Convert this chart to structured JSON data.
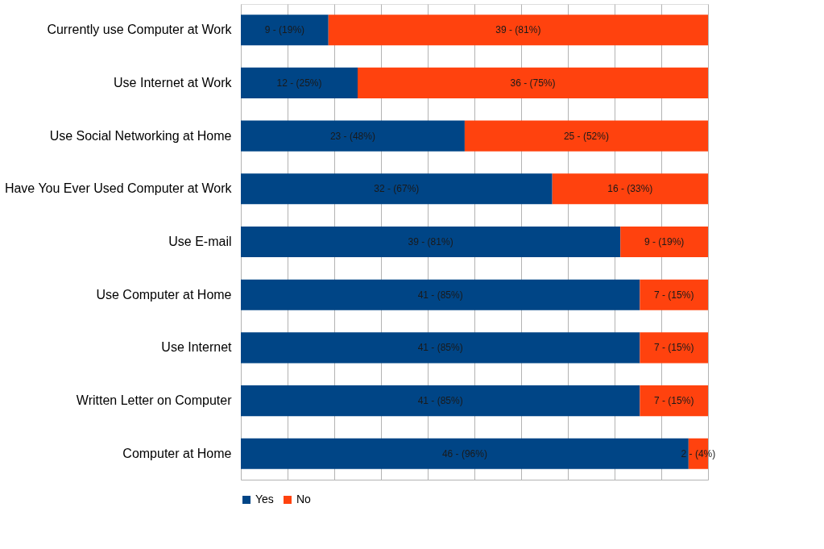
{
  "chart_data": {
    "type": "bar",
    "orientation": "horizontal",
    "stacked": true,
    "categories": [
      "Currently use Computer at Work",
      "Use Internet at Work",
      "Use Social Networking at Home",
      "Have You Ever Used Computer at Work",
      "Use E-mail",
      "Use Computer at Home",
      "Use Internet",
      "Written Letter on Computer",
      "Computer at Home"
    ],
    "series": [
      {
        "name": "Yes",
        "color": "#004586",
        "values": [
          9,
          12,
          23,
          32,
          39,
          41,
          41,
          41,
          46
        ],
        "value_labels": [
          "9 - (19%)",
          "12 - (25%)",
          "23 - (48%)",
          "32 - (67%)",
          "39 - (81%)",
          "41 - (85%)",
          "41 - (85%)",
          "41 - (85%)",
          "46 - (96%)"
        ]
      },
      {
        "name": "No",
        "color": "#ff420e",
        "values": [
          39,
          36,
          25,
          16,
          9,
          7,
          7,
          7,
          2
        ],
        "value_labels": [
          "39 - (81%)",
          "36 - (75%)",
          "25 - (52%)",
          "16 - (33%)",
          "9 - (19%)",
          "7 - (15%)",
          "7 - (15%)",
          "7 - (15%)",
          "2 - (4%)"
        ]
      }
    ],
    "xlim": [
      0,
      48
    ],
    "xticks": [
      {
        "value": 0,
        "label": null
      },
      {
        "value": 4.8,
        "label": null
      },
      {
        "value": 9.6,
        "label": null
      },
      {
        "value": 14.4,
        "label": null
      },
      {
        "value": 19.2,
        "label": null
      },
      {
        "value": 24,
        "label": null
      },
      {
        "value": 28.8,
        "label": null
      },
      {
        "value": 33.6,
        "label": null
      },
      {
        "value": 38.4,
        "label": null
      },
      {
        "value": 43.2,
        "label": null
      },
      {
        "value": 48,
        "label": null
      }
    ],
    "tick_labels": "y",
    "grid": "x",
    "legend": "bottom"
  }
}
